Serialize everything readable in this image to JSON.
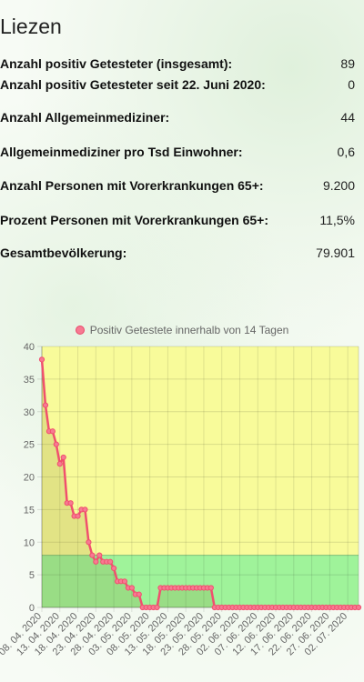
{
  "title": "Liezen",
  "stats": [
    {
      "label": "Anzahl positiv Getesteter (insgesamt):",
      "value": "89"
    },
    {
      "label": "Anzahl positiv Getesteter seit 22. Juni 2020:",
      "value": "0"
    },
    {
      "label": "Anzahl Allgemeinmediziner:",
      "value": "44"
    },
    {
      "label": "Allgemeinmediziner pro Tsd Einwohner:",
      "value": "0,6"
    },
    {
      "label": "Anzahl Personen mit Vorerkrankungen 65+:",
      "value": "9.200"
    },
    {
      "label": "Prozent Personen mit Vorerkrankungen 65+:",
      "value": "11,5%"
    },
    {
      "label": "Gesamtbevölkerung:",
      "value": "79.901"
    }
  ],
  "colors": {
    "line": "#f0506e",
    "point_fill": "#f77a92",
    "yellow_band": "#f8fb9a",
    "green_band": "#9ff39a"
  },
  "chart_data": {
    "type": "line",
    "legend": "Positiv Getestete innerhalb von 14 Tagen",
    "legend_position": "top-center",
    "ylim": [
      0,
      40
    ],
    "y_ticks": [
      "0",
      "5",
      "10",
      "15",
      "20",
      "25",
      "30",
      "35",
      "40"
    ],
    "grid": true,
    "bands": [
      {
        "from": 0,
        "to": 8,
        "color": "green"
      },
      {
        "from": 8,
        "to": 40,
        "color": "yellow"
      }
    ],
    "x_tick_labels": [
      "08. 04. 2020",
      "13. 04. 2020",
      "18. 04. 2020",
      "23. 04. 2020",
      "28. 04. 2020",
      "03. 05. 2020",
      "08. 05. 2020",
      "13. 05. 2020",
      "18. 05. 2020",
      "23. 05. 2020",
      "28. 05. 2020",
      "02. 06. 2020",
      "07. 06. 2020",
      "12. 06. 2020",
      "17. 06. 2020",
      "22. 06. 2020",
      "27. 06. 2020",
      "02. 07. 2020"
    ],
    "x_start": "08. 04. 2020",
    "series": [
      {
        "name": "Positiv Getestete innerhalb von 14 Tagen",
        "values": [
          38,
          31,
          27,
          27,
          25,
          22,
          23,
          16,
          16,
          14,
          14,
          15,
          15,
          10,
          8,
          7,
          8,
          7,
          7,
          7,
          6,
          4,
          4,
          4,
          3,
          3,
          2,
          2,
          0,
          0,
          0,
          0,
          0,
          3,
          3,
          3,
          3,
          3,
          3,
          3,
          3,
          3,
          3,
          3,
          3,
          3,
          3,
          3,
          0,
          0,
          0,
          0,
          0,
          0,
          0,
          0,
          0,
          0,
          0,
          0,
          0,
          0,
          0,
          0,
          0,
          0,
          0,
          0,
          0,
          0,
          0,
          0,
          0,
          0,
          0,
          0,
          0,
          0,
          0,
          0,
          0,
          0,
          0,
          0,
          0,
          0,
          0,
          0,
          0
        ]
      }
    ]
  }
}
